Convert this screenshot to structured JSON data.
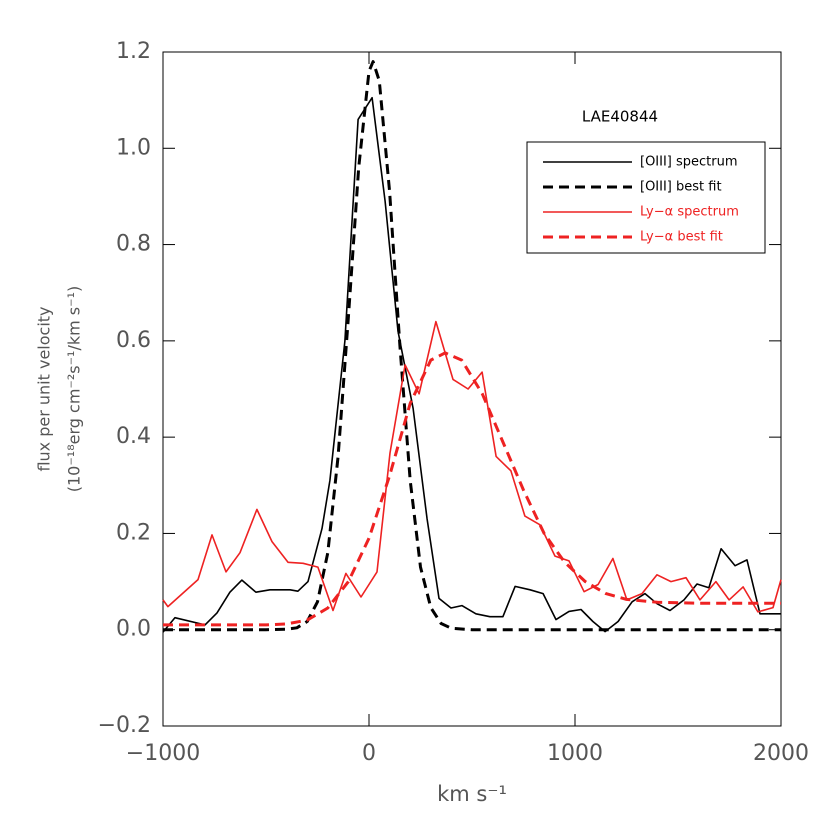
{
  "chart_data": {
    "type": "line",
    "annotation": "LAE40844",
    "xlabel": "km s⁻¹",
    "ylabel": [
      "flux per unit velocity",
      "(10⁻¹⁸erg cm⁻²s⁻¹/km s⁻¹)"
    ],
    "xlim": [
      -1000,
      2000
    ],
    "ylim": [
      -0.2,
      1.2
    ],
    "xticks": [
      {
        "value": -1000,
        "label": "−1000"
      },
      0,
      1000,
      2000
    ],
    "yticks": [
      {
        "value": -0.2,
        "label": "−0.2"
      },
      {
        "value": 0,
        "label": "0.0"
      },
      0.2,
      0.4,
      0.6,
      0.8,
      {
        "value": 1,
        "label": "1.0"
      },
      1.2
    ],
    "legend": "upper right",
    "series": [
      {
        "name": "[OIII] spectrum",
        "color": "#000000",
        "dashed": false,
        "x": [
          -1000,
          -942,
          -796,
          -738,
          -675,
          -617,
          -549,
          -481,
          -383,
          -345,
          -296,
          -228,
          -190,
          -117,
          -53,
          15,
          78,
          141,
          214,
          282,
          340,
          398,
          451,
          519,
          587,
          650,
          709,
          782,
          845,
          908,
          971,
          1029,
          1087,
          1146,
          1209,
          1277,
          1340,
          1398,
          1461,
          1529,
          1592,
          1650,
          1709,
          1777,
          1835,
          1898,
          2000
        ],
        "values": [
          -0.005,
          0.025,
          0.01,
          0.035,
          0.078,
          0.103,
          0.078,
          0.083,
          0.083,
          0.08,
          0.1,
          0.21,
          0.31,
          0.6,
          1.06,
          1.105,
          0.89,
          0.62,
          0.46,
          0.23,
          0.065,
          0.045,
          0.05,
          0.033,
          0.027,
          0.027,
          0.09,
          0.083,
          0.075,
          0.021,
          0.038,
          0.042,
          0.017,
          -0.004,
          0.017,
          0.058,
          0.075,
          0.054,
          0.04,
          0.062,
          0.095,
          0.087,
          0.168,
          0.133,
          0.145,
          0.033,
          0.033
        ]
      },
      {
        "name": "[OIII] best fit",
        "color": "#000000",
        "dashed": true,
        "x": [
          -1000,
          -500,
          -400,
          -350,
          -300,
          -250,
          -200,
          -150,
          -100,
          -50,
          0,
          20,
          50,
          100,
          150,
          200,
          250,
          300,
          350,
          400,
          500,
          2000
        ],
        "values": [
          0,
          0,
          0.001,
          0.004,
          0.017,
          0.058,
          0.16,
          0.36,
          0.65,
          0.96,
          1.16,
          1.18,
          1.14,
          0.91,
          0.59,
          0.31,
          0.13,
          0.046,
          0.013,
          0.003,
          0,
          0
        ]
      },
      {
        "name": "Ly−α spectrum",
        "color": "#ee2222",
        "dashed": false,
        "x": [
          -1000,
          -976,
          -830,
          -762,
          -694,
          -626,
          -544,
          -471,
          -393,
          -320,
          -248,
          -175,
          -112,
          -39,
          39,
          102,
          175,
          243,
          325,
          408,
          481,
          549,
          617,
          689,
          757,
          830,
          903,
          971,
          1044,
          1112,
          1184,
          1252,
          1325,
          1398,
          1466,
          1539,
          1607,
          1684,
          1748,
          1816,
          1888,
          1961,
          2000
        ],
        "values": [
          0.062,
          0.048,
          0.104,
          0.197,
          0.12,
          0.16,
          0.25,
          0.183,
          0.14,
          0.138,
          0.13,
          0.04,
          0.117,
          0.068,
          0.12,
          0.367,
          0.55,
          0.49,
          0.64,
          0.52,
          0.5,
          0.535,
          0.36,
          0.33,
          0.236,
          0.218,
          0.153,
          0.143,
          0.079,
          0.094,
          0.148,
          0.062,
          0.075,
          0.114,
          0.1,
          0.108,
          0.062,
          0.1,
          0.062,
          0.089,
          0.037,
          0.046,
          0.104
        ]
      },
      {
        "name": "Ly−α best fit",
        "color": "#ee2222",
        "dashed": true,
        "x": [
          -1000,
          -500,
          -400,
          -300,
          -200,
          -100,
          0,
          100,
          200,
          300,
          370,
          450,
          550,
          650,
          750,
          850,
          950,
          1050,
          1150,
          1250,
          1400,
          1600,
          2000
        ],
        "values": [
          0.01,
          0.01,
          0.012,
          0.02,
          0.045,
          0.1,
          0.19,
          0.32,
          0.47,
          0.56,
          0.575,
          0.56,
          0.49,
          0.39,
          0.29,
          0.2,
          0.14,
          0.1,
          0.075,
          0.063,
          0.057,
          0.055,
          0.055
        ]
      }
    ]
  }
}
